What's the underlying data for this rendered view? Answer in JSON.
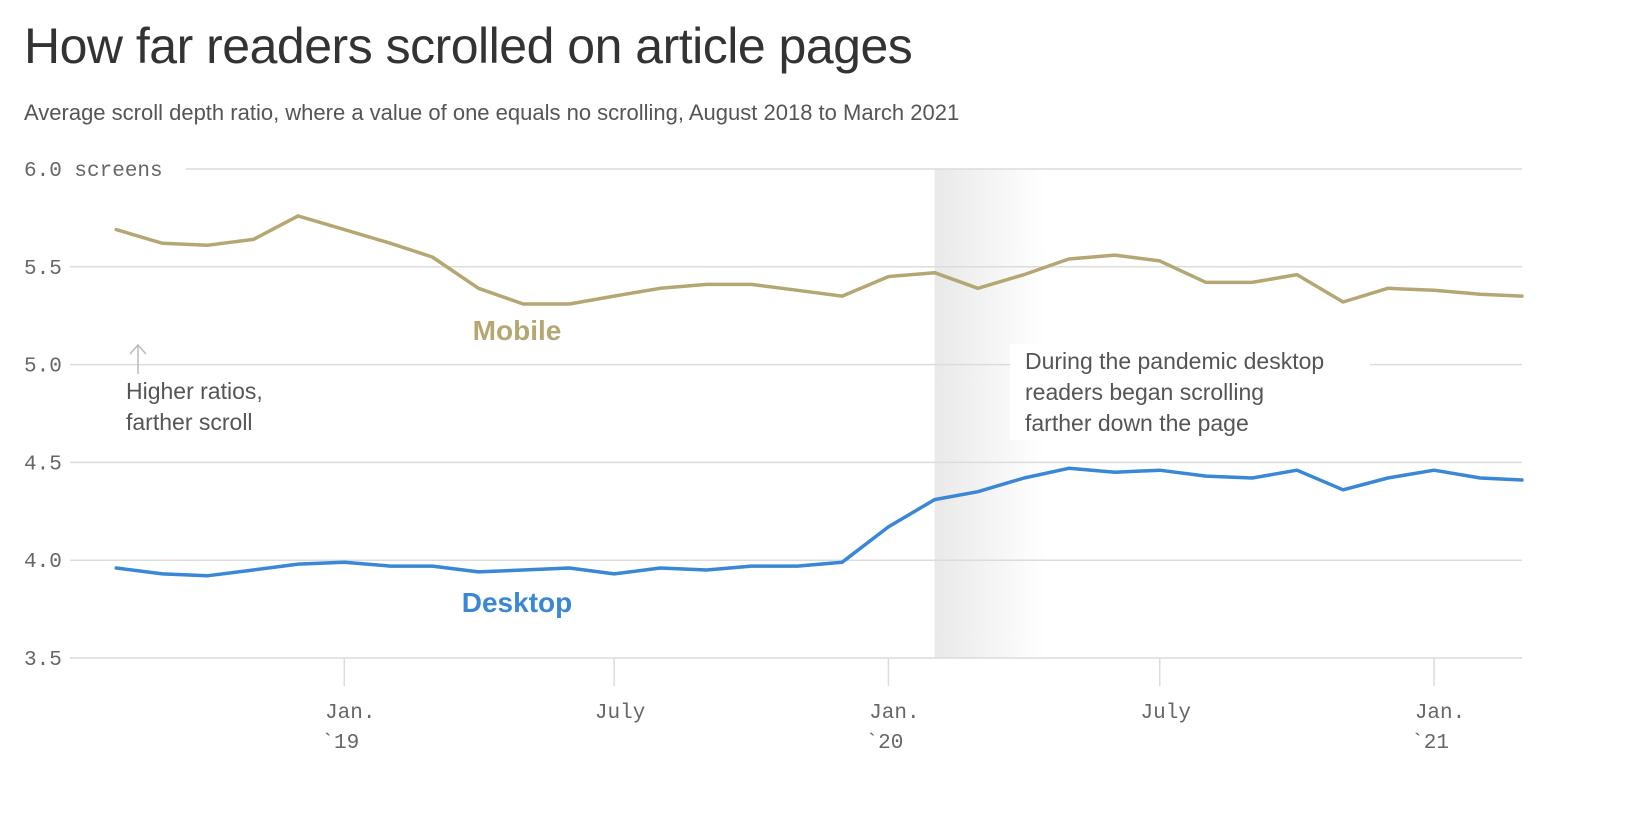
{
  "chart_data": {
    "type": "line",
    "title": "How far readers scrolled on article pages",
    "subtitle": "Average scroll depth ratio, where a value of one equals no scrolling, August 2018 to March 2021",
    "y_unit_label": "screens",
    "ylim": [
      3.5,
      6.0
    ],
    "y_ticks": [
      "3.5",
      "4.0",
      "4.5",
      "5.0",
      "5.5",
      "6.0"
    ],
    "x_ticks": [
      {
        "x": "2019-01-01",
        "line1": "Jan.",
        "line2": "`19"
      },
      {
        "x": "2019-07-01",
        "line1": "July",
        "line2": ""
      },
      {
        "x": "2020-01-01",
        "line1": "Jan.",
        "line2": "`20"
      },
      {
        "x": "2020-07-01",
        "line1": "July",
        "line2": ""
      },
      {
        "x": "2021-01-01",
        "line1": "Jan.",
        "line2": "`21"
      }
    ],
    "xlim": [
      "2018-07-01",
      "2021-03-01"
    ],
    "grid": true,
    "shaded_region": {
      "start": "2020-02-01",
      "end": "2020-04-15"
    },
    "x": [
      "2018-08-01",
      "2018-09-01",
      "2018-10-01",
      "2018-11-01",
      "2018-12-01",
      "2019-01-01",
      "2019-02-01",
      "2019-03-01",
      "2019-04-01",
      "2019-05-01",
      "2019-06-01",
      "2019-07-01",
      "2019-08-01",
      "2019-09-01",
      "2019-10-01",
      "2019-11-01",
      "2019-12-01",
      "2020-01-01",
      "2020-02-01",
      "2020-03-01",
      "2020-04-01",
      "2020-05-01",
      "2020-06-01",
      "2020-07-01",
      "2020-08-01",
      "2020-09-01",
      "2020-10-01",
      "2020-11-01",
      "2020-12-01",
      "2021-01-01",
      "2021-02-01",
      "2021-03-01"
    ],
    "series": [
      {
        "name": "Mobile",
        "color": "#b5a774",
        "values": [
          5.69,
          5.62,
          5.61,
          5.64,
          5.76,
          5.69,
          5.62,
          5.55,
          5.39,
          5.31,
          5.31,
          5.35,
          5.39,
          5.41,
          5.41,
          5.38,
          5.35,
          5.45,
          5.47,
          5.39,
          5.46,
          5.54,
          5.56,
          5.53,
          5.42,
          5.42,
          5.46,
          5.32,
          5.39,
          5.38,
          5.36,
          5.35
        ]
      },
      {
        "name": "Desktop",
        "color": "#3a87d6",
        "values": [
          3.96,
          3.93,
          3.92,
          3.95,
          3.98,
          3.99,
          3.97,
          3.97,
          3.94,
          3.95,
          3.96,
          3.93,
          3.96,
          3.95,
          3.97,
          3.97,
          3.99,
          4.17,
          4.31,
          4.35,
          4.42,
          4.47,
          4.45,
          4.46,
          4.43,
          4.42,
          4.46,
          4.36,
          4.42,
          4.46,
          4.42,
          4.41
        ]
      }
    ],
    "annotations": [
      {
        "id": "higher",
        "lines": [
          "Higher ratios,",
          "farther scroll"
        ]
      },
      {
        "id": "pandemic",
        "lines": [
          "During the pandemic desktop",
          "readers began scrolling",
          "farther down the page"
        ]
      }
    ]
  }
}
